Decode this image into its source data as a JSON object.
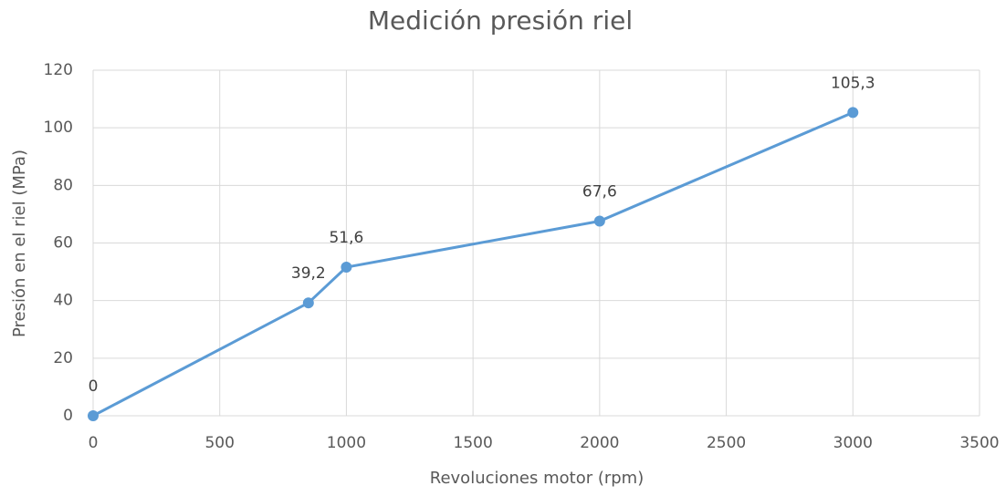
{
  "chart_data": {
    "type": "line",
    "title": "Medición presión riel",
    "x_label": "Revoluciones motor (rpm)",
    "y_label": "Presión en el riel (MPa)",
    "x": [
      0,
      850,
      1000,
      2000,
      3000
    ],
    "values": [
      0,
      39.2,
      51.6,
      67.6,
      105.3
    ],
    "value_labels": [
      "0",
      "39,2",
      "51,6",
      "67,6",
      "105,3"
    ],
    "color": "#5b9bd5",
    "xlim": [
      0,
      3500
    ],
    "xticks": [
      0,
      500,
      1000,
      1500,
      2000,
      2500,
      3000,
      3500
    ],
    "ylim": [
      0,
      120
    ],
    "yticks": [
      0,
      20,
      40,
      60,
      80,
      100,
      120
    ],
    "grid": true
  }
}
